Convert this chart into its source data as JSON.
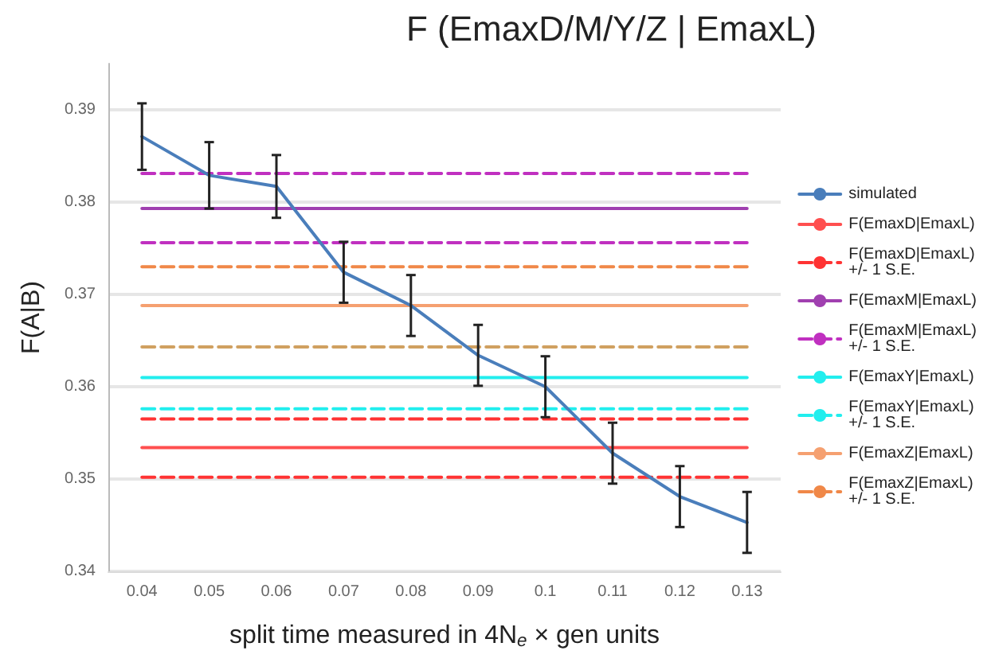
{
  "chart_data": {
    "type": "line",
    "title": "F (EmaxD/M/Y/Z | EmaxL)",
    "xlabel": "split time measured in 4N$_{e}$ × gen units",
    "ylabel": "F(A|B)",
    "categories": [
      "0.04",
      "0.05",
      "0.06",
      "0.07",
      "0.08",
      "0.09",
      "0.1",
      "0.11",
      "0.12",
      "0.13"
    ],
    "ylim": [
      0.34,
      0.395
    ],
    "yticks": [
      0.34,
      0.35,
      0.36,
      0.37,
      0.38,
      0.39
    ],
    "grid": "y",
    "legend": "right",
    "marker": "none",
    "series": [
      {
        "name": "simulated",
        "color": "#4a7ebb",
        "line_style": "solid",
        "values": [
          0.3871,
          0.3829,
          0.3817,
          0.3724,
          0.3688,
          0.3634,
          0.36,
          0.3528,
          0.3481,
          0.3453
        ],
        "errors": [
          0.0036,
          0.0036,
          0.0034,
          0.0033,
          0.0033,
          0.0033,
          0.0033,
          0.0033,
          0.0033,
          0.0033
        ]
      },
      {
        "name": "F(EmaxD|EmaxL)",
        "color": "#ff4f4f",
        "line_style": "solid",
        "values": [
          0.3534,
          0.3534,
          0.3534,
          0.3534,
          0.3534,
          0.3534,
          0.3534,
          0.3534,
          0.3534,
          0.3534
        ]
      },
      {
        "name": "F(EmaxD|EmaxL)\n+/- 1 S.E.",
        "color": "#ff3333",
        "line_style": "dashed",
        "values": [
          0.3565,
          0.3565,
          0.3565,
          0.3565,
          0.3565,
          0.3565,
          0.3565,
          0.3565,
          0.3565,
          0.3565
        ]
      },
      {
        "color": "#ff3333",
        "line_style": "dashed",
        "values": [
          0.3502,
          0.3502,
          0.3502,
          0.3502,
          0.3502,
          0.3502,
          0.3502,
          0.3502,
          0.3502,
          0.3502
        ]
      },
      {
        "name": "F(EmaxM|EmaxL)",
        "color": "#a040b0",
        "line_style": "solid",
        "values": [
          0.3793,
          0.3793,
          0.3793,
          0.3793,
          0.3793,
          0.3793,
          0.3793,
          0.3793,
          0.3793,
          0.3793
        ]
      },
      {
        "name": "F(EmaxM|EmaxL)\n+/- 1 S.E.",
        "color": "#c030c0",
        "line_style": "dashed",
        "values": [
          0.3831,
          0.3831,
          0.3831,
          0.3831,
          0.3831,
          0.3831,
          0.3831,
          0.3831,
          0.3831,
          0.3831
        ]
      },
      {
        "color": "#c030c0",
        "line_style": "dashed",
        "values": [
          0.3756,
          0.3756,
          0.3756,
          0.3756,
          0.3756,
          0.3756,
          0.3756,
          0.3756,
          0.3756,
          0.3756
        ]
      },
      {
        "name": "F(EmaxY|EmaxL)",
        "color": "#22eeee",
        "line_style": "solid",
        "values": [
          0.361,
          0.361,
          0.361,
          0.361,
          0.361,
          0.361,
          0.361,
          0.361,
          0.361,
          0.361
        ]
      },
      {
        "name": "F(EmaxY|EmaxL)\n+/- 1 S.E.",
        "color": "#22eeee",
        "line_style": "dashed",
        "values": [
          0.3576,
          0.3576,
          0.3576,
          0.3576,
          0.3576,
          0.3576,
          0.3576,
          0.3576,
          0.3576,
          0.3576
        ]
      },
      {
        "name": "F(EmaxZ|EmaxL)",
        "color": "#f5a070",
        "line_style": "solid",
        "values": [
          0.3688,
          0.3688,
          0.3688,
          0.3688,
          0.3688,
          0.3688,
          0.3688,
          0.3688,
          0.3688,
          0.3688
        ]
      },
      {
        "name": "F(EmaxZ|EmaxL)\n+/- 1 S.E.",
        "color": "#f08848",
        "line_style": "dashed",
        "values": [
          0.373,
          0.373,
          0.373,
          0.373,
          0.373,
          0.373,
          0.373,
          0.373,
          0.373,
          0.373
        ]
      },
      {
        "color": "#d0a060",
        "line_style": "dashed",
        "values": [
          0.3643,
          0.3643,
          0.3643,
          0.3643,
          0.3643,
          0.3643,
          0.3643,
          0.3643,
          0.3643,
          0.3643
        ]
      }
    ]
  }
}
